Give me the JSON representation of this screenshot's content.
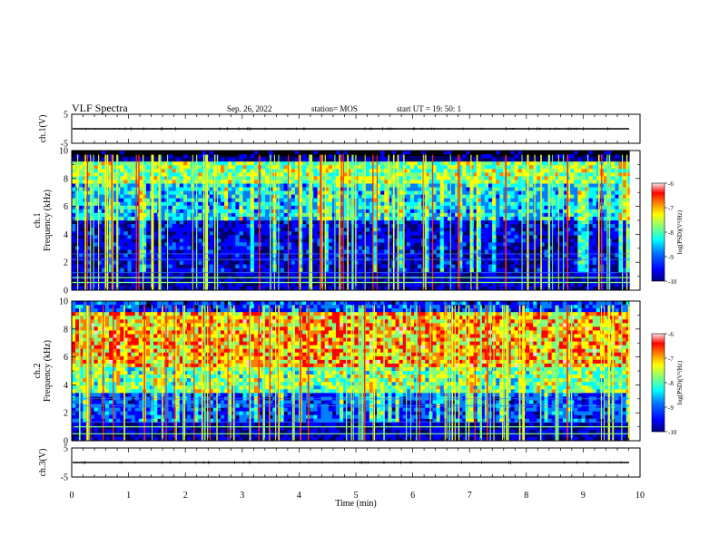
{
  "header": {
    "title": "VLF Spectra",
    "date": "Sep. 26, 2022",
    "station": "station= MOS",
    "start": "start  UT  =   19: 50: 1"
  },
  "colors": {
    "spectrum": [
      "#00007f",
      "#0000ff",
      "#007fff",
      "#00ffff",
      "#7fff7f",
      "#ffff00",
      "#ff7f00",
      "#ff0000",
      "#ffd8d8"
    ],
    "noise_floor": "#000000",
    "line": "#000000"
  },
  "chart_data": [
    {
      "type": "line",
      "name": "ch1-waveform",
      "ylabel": "ch.1(V)",
      "xlim": [
        0,
        10
      ],
      "ylim": [
        -5,
        5
      ],
      "yticks": [
        5,
        -5
      ],
      "baseline": 0
    },
    {
      "type": "heatmap",
      "name": "ch1-spectrogram",
      "ylabel": "ch.1\nFrequency (kHz)",
      "xlim": [
        0,
        10
      ],
      "ylim": [
        0,
        10
      ],
      "yticks": [
        0,
        2,
        4,
        6,
        8,
        10
      ],
      "colorbar": {
        "label": "log(PSD)(V²/Hz)",
        "ticks": [
          -6,
          -7,
          -8,
          -9,
          -10
        ],
        "range": [
          -10,
          -6
        ]
      },
      "data_end_min": 9.82
    },
    {
      "type": "heatmap",
      "name": "ch2-spectrogram",
      "ylabel": "ch.2\nFrequency (kHz)",
      "xlim": [
        0,
        10
      ],
      "ylim": [
        0,
        10
      ],
      "yticks": [
        0,
        2,
        4,
        6,
        8,
        10
      ],
      "colorbar": {
        "label": "log(PSD)(V²/Hz)",
        "ticks": [
          -6,
          -7,
          -8,
          -9,
          -10
        ],
        "range": [
          -10,
          -6
        ]
      },
      "data_end_min": 9.82
    },
    {
      "type": "line",
      "name": "ch3-waveform",
      "ylabel": "ch.3(V)",
      "xlim": [
        0,
        10
      ],
      "ylim": [
        -5,
        5
      ],
      "yticks": [
        5,
        -5
      ],
      "baseline": 0,
      "xlabel": "Time  (min)",
      "xticks": [
        0,
        1,
        2,
        3,
        4,
        5,
        6,
        7,
        8,
        9,
        10
      ]
    }
  ]
}
